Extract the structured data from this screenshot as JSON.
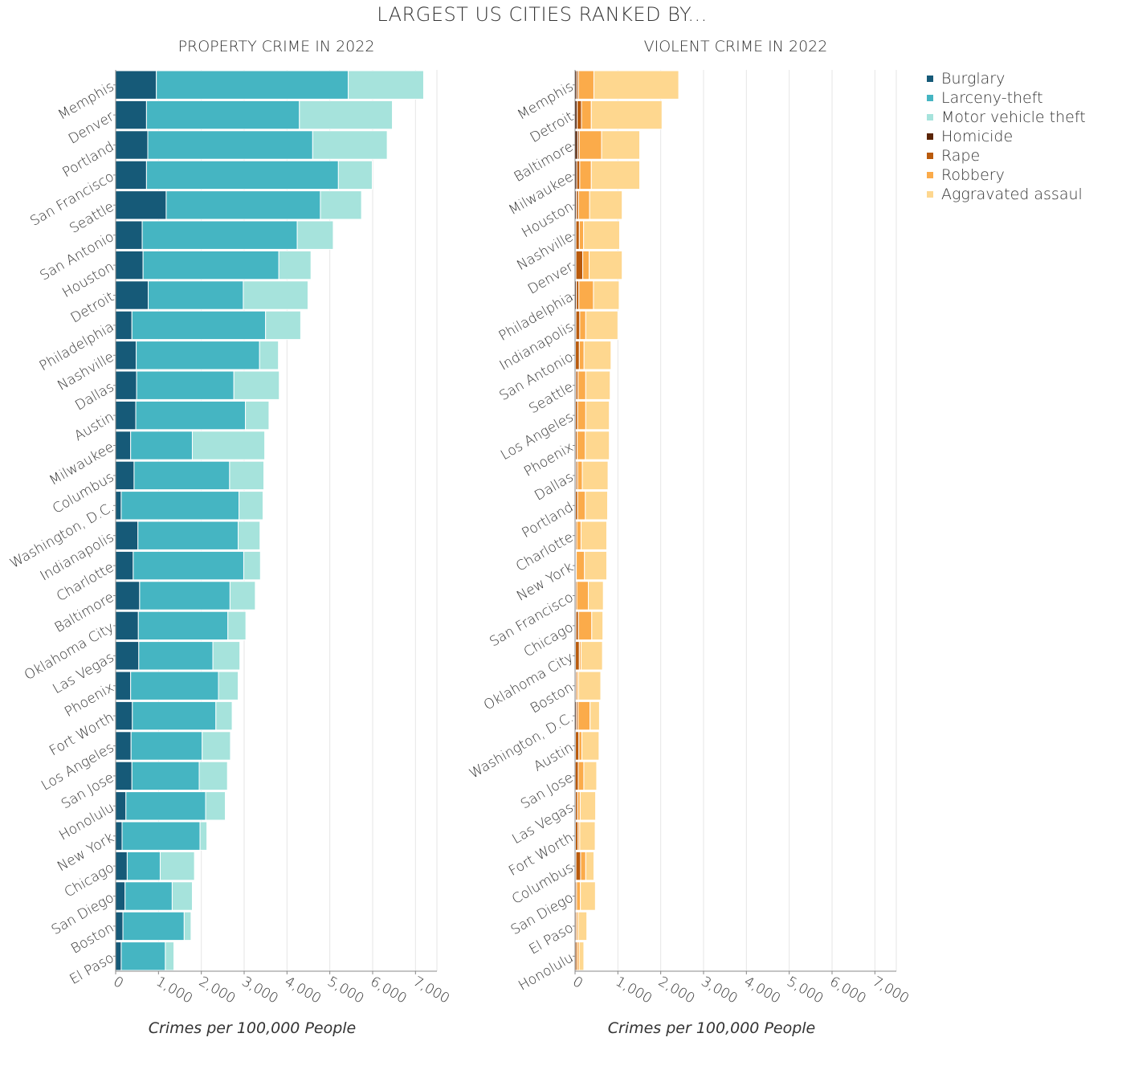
{
  "title": "LARGEST US CITIES RANKED BY...",
  "legend": [
    {
      "label": "Burglary",
      "color": "#165a78"
    },
    {
      "label": "Larceny-theft",
      "color": "#45b5c2"
    },
    {
      "label": "Motor vehicle theft",
      "color": "#a6e3dc"
    },
    {
      "label": "Homicide",
      "color": "#5a2406"
    },
    {
      "label": "Rape",
      "color": "#b95a0c"
    },
    {
      "label": "Robbery",
      "color": "#fbab4a"
    },
    {
      "label": "Aggravated assaul",
      "color": "#fed78f"
    }
  ],
  "chart_data": [
    {
      "type": "bar",
      "orientation": "horizontal",
      "stacked": true,
      "title": "PROPERTY CRIME IN 2022",
      "xlabel": "Crimes per 100,000 People",
      "xlim": [
        0,
        7500
      ],
      "xticks": [
        0,
        1000,
        2000,
        3000,
        4000,
        5000,
        6000,
        7000
      ],
      "xtick_labels": [
        "0",
        "1,000",
        "2,000",
        "3,000",
        "4,000",
        "5,000",
        "6,000",
        "7,000"
      ],
      "grid": true,
      "categories": [
        "Memphis",
        "Denver",
        "Portland",
        "San Francisco",
        "Seattle",
        "San Antonio",
        "Houston",
        "Detroit",
        "Philadelphia",
        "Nashville",
        "Dallas",
        "Austin",
        "Milwaukee",
        "Columbus",
        "Washington, D.C.",
        "Indianapolis",
        "Charlotte",
        "Baltimore",
        "Oklahoma City",
        "Las Vegas",
        "Phoenix",
        "Fort Worth",
        "Los Angeles",
        "San Jose",
        "Honolulu",
        "New York",
        "Chicago",
        "San Diego",
        "Boston",
        "El Paso"
      ],
      "series": [
        {
          "name": "Burglary",
          "color": "#165a78",
          "values": [
            950,
            720,
            750,
            720,
            1180,
            620,
            640,
            760,
            380,
            480,
            490,
            470,
            350,
            430,
            130,
            520,
            410,
            560,
            530,
            540,
            350,
            390,
            360,
            380,
            240,
            150,
            270,
            220,
            170,
            130
          ]
        },
        {
          "name": "Larceny-theft",
          "color": "#45b5c2",
          "values": [
            4480,
            3570,
            3850,
            4480,
            3600,
            3620,
            3170,
            2220,
            3120,
            2880,
            2270,
            2560,
            1440,
            2230,
            2750,
            2340,
            2580,
            2110,
            2090,
            1730,
            2050,
            1950,
            1660,
            1570,
            1860,
            1820,
            770,
            1100,
            1430,
            1030
          ]
        },
        {
          "name": "Motor vehicle theft",
          "color": "#a6e3dc",
          "values": [
            1760,
            2170,
            1740,
            790,
            960,
            840,
            750,
            1510,
            820,
            440,
            1060,
            550,
            1690,
            800,
            560,
            510,
            390,
            590,
            420,
            630,
            460,
            380,
            660,
            660,
            460,
            160,
            800,
            470,
            160,
            200
          ]
        }
      ]
    },
    {
      "type": "bar",
      "orientation": "horizontal",
      "stacked": true,
      "title": "VIOLENT CRIME IN 2022",
      "xlabel": "Crimes per 100,000 People",
      "xlim": [
        0,
        7500
      ],
      "xticks": [
        0,
        1000,
        2000,
        3000,
        4000,
        5000,
        6000,
        7000
      ],
      "xtick_labels": [
        "0",
        "1,000",
        "2,000",
        "3,000",
        "4,000",
        "5,000",
        "6,000",
        "7,000"
      ],
      "grid": true,
      "categories": [
        "Memphis",
        "Detroit",
        "Baltimore",
        "Milwaukee",
        "Houston",
        "Nashville",
        "Denver",
        "Philadelphia",
        "Indianapolis",
        "San Antonio",
        "Seattle",
        "Los Angeles",
        "Phoenix",
        "Dallas",
        "Portland",
        "Charlotte",
        "New York",
        "San Francisco",
        "Chicago",
        "Oklahoma City",
        "Boston",
        "Washington, D.C.",
        "Austin",
        "San Jose",
        "Las Vegas",
        "Fort Worth",
        "Columbus",
        "San Diego",
        "El Paso",
        "Honolulu"
      ],
      "series": [
        {
          "name": "Homicide",
          "color": "#5a2406",
          "values": [
            40,
            50,
            60,
            40,
            30,
            20,
            20,
            30,
            20,
            10,
            20,
            10,
            10,
            20,
            10,
            10,
            10,
            10,
            20,
            10,
            10,
            30,
            10,
            5,
            10,
            10,
            20,
            5,
            5,
            5
          ]
        },
        {
          "name": "Rape",
          "color": "#b95a0c",
          "values": [
            40,
            100,
            40,
            70,
            50,
            80,
            160,
            60,
            90,
            90,
            50,
            50,
            40,
            40,
            50,
            30,
            20,
            30,
            60,
            90,
            30,
            40,
            80,
            70,
            50,
            60,
            110,
            30,
            30,
            40
          ]
        },
        {
          "name": "Robbery",
          "color": "#fbab4a",
          "values": [
            360,
            230,
            520,
            270,
            260,
            100,
            150,
            340,
            140,
            110,
            180,
            190,
            190,
            110,
            180,
            100,
            190,
            270,
            310,
            40,
            40,
            280,
            70,
            130,
            60,
            40,
            120,
            90,
            40,
            50
          ]
        },
        {
          "name": "Aggravated assaul",
          "color": "#fed78f",
          "values": [
            1980,
            1650,
            890,
            1130,
            760,
            840,
            770,
            600,
            750,
            630,
            570,
            550,
            560,
            600,
            520,
            600,
            520,
            350,
            260,
            500,
            520,
            220,
            400,
            300,
            360,
            360,
            190,
            350,
            200,
            110
          ]
        }
      ]
    }
  ]
}
